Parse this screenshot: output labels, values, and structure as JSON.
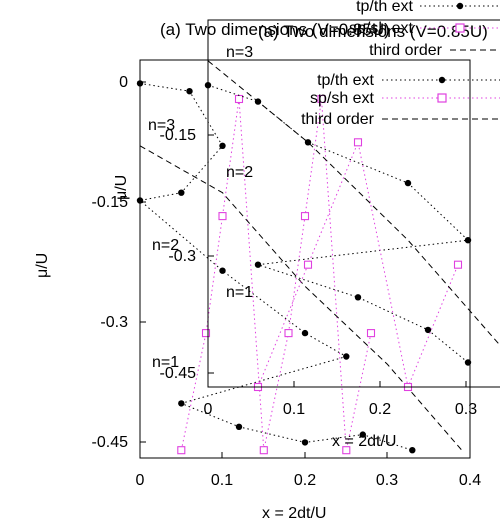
{
  "chart_data": [
    {
      "type": "line",
      "title": "(a) Two dimensions (V=0.85U)",
      "xlabel": "x = 2dt/U",
      "ylabel": "μ/U",
      "xlim": [
        0,
        0.4
      ],
      "ylim": [
        -0.46,
        0.05
      ],
      "xticks": [
        "0",
        "0.1",
        "0.2",
        "0.3",
        "0.4"
      ],
      "yticks": [
        "0",
        "-0.15",
        "-0.3",
        "-0.45"
      ],
      "grid": false,
      "legend_position": "top-right",
      "annotations": [
        "n=3",
        "n=2",
        "n=1"
      ],
      "series": [
        {
          "name": "tp/th ext",
          "color": "#000000",
          "marker": "filled-circle",
          "x": [
            0,
            0.06,
            0.1,
            0.05,
            0,
            0.1,
            0.2,
            0.25,
            0.05,
            0.12,
            0.2,
            0.27,
            0.33
          ],
          "y": [
            0.02,
            0.01,
            -0.06,
            -0.12,
            -0.13,
            -0.22,
            -0.3,
            -0.33,
            -0.39,
            -0.42,
            -0.44,
            -0.43,
            -0.45
          ]
        },
        {
          "name": "sp/sh ext",
          "color": "#e040e0",
          "marker": "open-square",
          "x": [
            0.05,
            0.08,
            0.1,
            0.12,
            0.15,
            0.18,
            0.2,
            0.22,
            0.25,
            0.28
          ],
          "y": [
            -0.45,
            -0.3,
            -0.15,
            0.0,
            -0.45,
            -0.3,
            -0.15,
            0.0,
            -0.45,
            -0.3
          ]
        },
        {
          "name": "third order",
          "color": "#000000",
          "marker": "none",
          "x": [
            0,
            0.1,
            0.2,
            0.3,
            0.39
          ],
          "y": [
            -0.06,
            -0.12,
            -0.24,
            -0.34,
            -0.45
          ]
        }
      ]
    },
    {
      "type": "line",
      "title": "(a) Two dimensions (V=0.85U)",
      "xlabel": "x = 2dt/U",
      "ylabel": "μ/U",
      "xlim": [
        0,
        0.3
      ],
      "ylim": [
        -0.45,
        0.0
      ],
      "xticks": [
        "0",
        "0.1",
        "0.2",
        "0.3"
      ],
      "yticks": [
        "-0.15",
        "-0.3",
        "-0.45"
      ],
      "grid": false,
      "legend_position": "top-right",
      "annotations": [
        "n=3",
        "n=2",
        "n=1"
      ],
      "series": [
        {
          "name": "tp/th ext",
          "color": "#000000",
          "marker": "filled-circle",
          "x": [
            0,
            0.05,
            0.1,
            0.2,
            0.26,
            0.05,
            0.15,
            0.22,
            0.26
          ],
          "y": [
            -0.08,
            -0.1,
            -0.15,
            -0.2,
            -0.27,
            -0.3,
            -0.34,
            -0.38,
            -0.42
          ]
        },
        {
          "name": "sp/sh ext",
          "color": "#e040e0",
          "marker": "open-square",
          "x": [
            0.05,
            0.1,
            0.15,
            0.2,
            0.25
          ],
          "y": [
            -0.45,
            -0.3,
            -0.15,
            -0.45,
            -0.3
          ]
        },
        {
          "name": "third order",
          "color": "#000000",
          "marker": "none",
          "x": [
            0,
            0.1,
            0.2,
            0.3
          ],
          "y": [
            -0.05,
            -0.15,
            -0.27,
            -0.41
          ]
        }
      ]
    }
  ],
  "figures": [
    {
      "title": "(a) Two dimensions (V=0.85U)",
      "xlabel": "x = 2dt/U",
      "ylabel": "μ/U",
      "xticks": [
        "0",
        "0.1",
        "0.2",
        "0.3",
        "0.4"
      ],
      "yticks": [
        "0",
        "-0.15",
        "-0.3",
        "-0.45"
      ],
      "legend": [
        "tp/th ext",
        "sp/sh ext",
        "third order"
      ],
      "labels": [
        "n=3",
        "n=2",
        "n=1"
      ]
    },
    {
      "title": "(a) Two dimensions (V=0.85U)",
      "xlabel": "x = 2dt/U",
      "ylabel": "μ/U",
      "xticks": [
        "0",
        "0.1",
        "0.2",
        "0.3"
      ],
      "yticks": [
        "-0.15",
        "-0.3",
        "-0.45"
      ],
      "legend": [
        "tp/th ext",
        "sp/sh ext",
        "third order"
      ],
      "labels": [
        "n=3",
        "n=2",
        "n=1"
      ]
    }
  ]
}
